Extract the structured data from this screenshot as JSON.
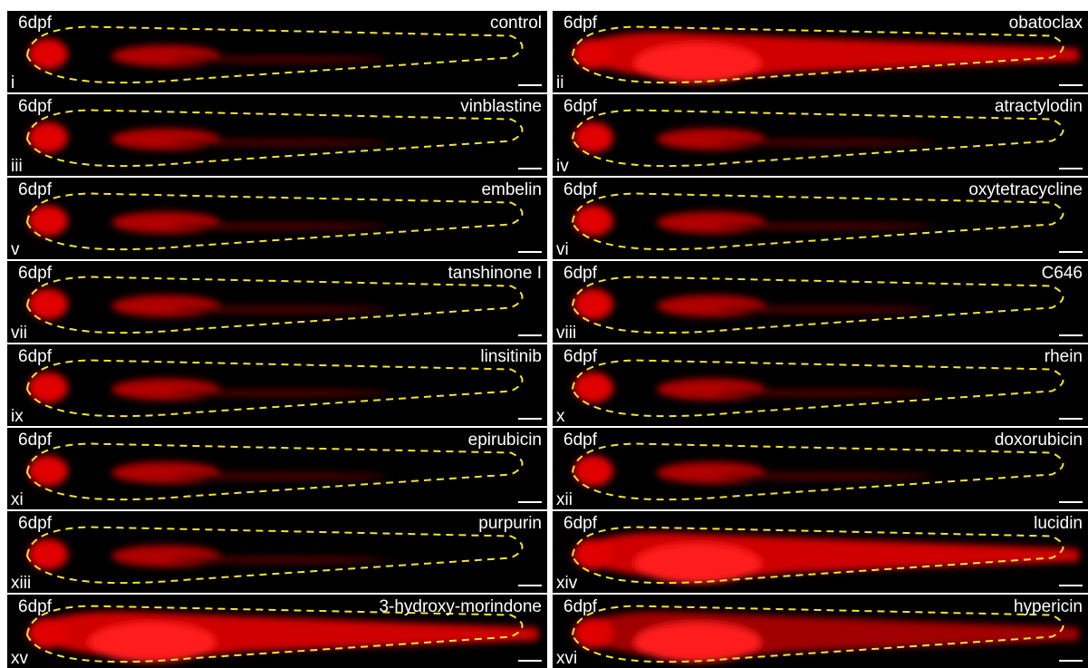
{
  "panels": [
    {
      "stage": "6dpf",
      "label": "control",
      "numeral": "i"
    },
    {
      "stage": "6dpf",
      "label": "obatoclax",
      "numeral": "ii"
    },
    {
      "stage": "6dpf",
      "label": "vinblastine",
      "numeral": "iii"
    },
    {
      "stage": "6dpf",
      "label": "atractylodin",
      "numeral": "iv"
    },
    {
      "stage": "6dpf",
      "label": "embelin",
      "numeral": "v"
    },
    {
      "stage": "6dpf",
      "label": "oxytetracycline",
      "numeral": "vi"
    },
    {
      "stage": "6dpf",
      "label": "tanshinone I",
      "numeral": "vii"
    },
    {
      "stage": "6dpf",
      "label": "C646",
      "numeral": "viii"
    },
    {
      "stage": "6dpf",
      "label": "linsitinib",
      "numeral": "ix"
    },
    {
      "stage": "6dpf",
      "label": "rhein",
      "numeral": "x"
    },
    {
      "stage": "6dpf",
      "label": "epirubicin",
      "numeral": "xi"
    },
    {
      "stage": "6dpf",
      "label": "doxorubicin",
      "numeral": "xii"
    },
    {
      "stage": "6dpf",
      "label": "purpurin",
      "numeral": "xiii"
    },
    {
      "stage": "6dpf",
      "label": "lucidin",
      "numeral": "xiv"
    },
    {
      "stage": "6dpf",
      "label": "3-hydroxy-morindone",
      "numeral": "xv"
    },
    {
      "stage": "6dpf",
      "label": "hypericin",
      "numeral": "xvi"
    }
  ]
}
